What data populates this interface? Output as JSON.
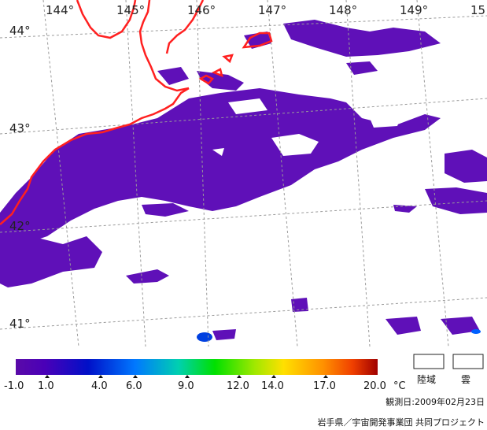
{
  "map": {
    "lon_labels": [
      "144°",
      "145°",
      "146°",
      "147°",
      "148°",
      "149°",
      "15"
    ],
    "lat_labels": [
      "44°",
      "43°",
      "42°",
      "41°"
    ]
  },
  "colorbar": {
    "ticks": [
      "-1.0",
      "1.0",
      "4.0",
      "6.0",
      "9.0",
      "12.0",
      "14.0",
      "17.0",
      "20.0"
    ],
    "unit": "°C",
    "colors": [
      "#5a0aa8",
      "#4a00b8",
      "#0010c8",
      "#0078ff",
      "#00d0b0",
      "#00e000",
      "#a0e800",
      "#ffe000",
      "#ff9000",
      "#f04000",
      "#a00000"
    ]
  },
  "legend": {
    "land_label": "陸域",
    "cloud_label": "雲"
  },
  "observation_date": "観測日:2009年02月23日",
  "credit": "岩手県／宇宙開発事業団 共同プロジェクト"
}
